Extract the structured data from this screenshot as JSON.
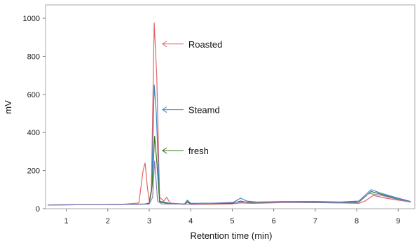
{
  "chart_data": {
    "type": "line",
    "title": "",
    "xlabel": "Retention time (min)",
    "ylabel": "mV",
    "xlim": [
      0.5,
      9.4
    ],
    "ylim": [
      0,
      1070
    ],
    "x_ticks": [
      1,
      2,
      3,
      4,
      5,
      6,
      7,
      8,
      9
    ],
    "y_ticks": [
      0,
      200,
      400,
      600,
      800,
      1000
    ],
    "grid": false,
    "legend": "none",
    "series": [
      {
        "color": "#e06666",
        "points": [
          [
            0.55,
            20
          ],
          [
            2.3,
            22
          ],
          [
            2.75,
            30
          ],
          [
            2.85,
            200
          ],
          [
            2.9,
            240
          ],
          [
            2.95,
            120
          ],
          [
            3.0,
            40
          ],
          [
            3.05,
            100
          ],
          [
            3.12,
            975
          ],
          [
            3.18,
            700
          ],
          [
            3.25,
            60
          ],
          [
            3.35,
            40
          ],
          [
            3.42,
            60
          ],
          [
            3.5,
            30
          ],
          [
            3.85,
            22
          ],
          [
            3.92,
            40
          ],
          [
            4.0,
            22
          ],
          [
            5.0,
            25
          ],
          [
            5.2,
            30
          ],
          [
            5.5,
            28
          ],
          [
            6.2,
            32
          ],
          [
            7.0,
            33
          ],
          [
            7.6,
            30
          ],
          [
            8.05,
            28
          ],
          [
            8.2,
            40
          ],
          [
            8.4,
            70
          ],
          [
            8.7,
            55
          ],
          [
            9.0,
            45
          ],
          [
            9.3,
            35
          ]
        ]
      },
      {
        "color": "#3d85c6",
        "points": [
          [
            0.55,
            20
          ],
          [
            2.3,
            22
          ],
          [
            2.9,
            25
          ],
          [
            3.0,
            30
          ],
          [
            3.06,
            100
          ],
          [
            3.12,
            650
          ],
          [
            3.17,
            500
          ],
          [
            3.25,
            40
          ],
          [
            3.5,
            28
          ],
          [
            3.85,
            25
          ],
          [
            3.92,
            45
          ],
          [
            4.0,
            28
          ],
          [
            5.0,
            30
          ],
          [
            5.2,
            55
          ],
          [
            5.35,
            40
          ],
          [
            5.6,
            35
          ],
          [
            6.2,
            38
          ],
          [
            7.0,
            38
          ],
          [
            7.6,
            35
          ],
          [
            8.05,
            40
          ],
          [
            8.35,
            100
          ],
          [
            8.6,
            80
          ],
          [
            9.0,
            55
          ],
          [
            9.3,
            38
          ]
        ]
      },
      {
        "color": "#38761d",
        "points": [
          [
            0.55,
            20
          ],
          [
            2.3,
            22
          ],
          [
            2.9,
            24
          ],
          [
            3.0,
            28
          ],
          [
            3.07,
            120
          ],
          [
            3.13,
            380
          ],
          [
            3.18,
            250
          ],
          [
            3.25,
            35
          ],
          [
            3.5,
            25
          ],
          [
            3.85,
            24
          ],
          [
            3.92,
            35
          ],
          [
            4.0,
            25
          ],
          [
            5.0,
            28
          ],
          [
            5.2,
            40
          ],
          [
            5.4,
            32
          ],
          [
            6.2,
            34
          ],
          [
            7.0,
            35
          ],
          [
            7.6,
            32
          ],
          [
            8.05,
            35
          ],
          [
            8.35,
            90
          ],
          [
            8.6,
            75
          ],
          [
            9.0,
            50
          ],
          [
            9.3,
            36
          ]
        ]
      },
      {
        "color": "#8e7cc3",
        "points": [
          [
            0.55,
            20
          ],
          [
            2.3,
            22
          ],
          [
            3.0,
            24
          ],
          [
            3.08,
            60
          ],
          [
            3.13,
            250
          ],
          [
            3.2,
            40
          ],
          [
            3.3,
            25
          ],
          [
            4.0,
            24
          ],
          [
            5.2,
            35
          ],
          [
            6.5,
            33
          ],
          [
            7.5,
            31
          ],
          [
            8.0,
            30
          ],
          [
            8.3,
            80
          ],
          [
            8.6,
            70
          ],
          [
            9.0,
            48
          ],
          [
            9.3,
            35
          ]
        ]
      }
    ],
    "annotations": [
      {
        "text": "Roasted",
        "color": "#e06666",
        "point_to": [
          3.15,
          865
        ]
      },
      {
        "text": "Steamd",
        "color": "#3d85c6",
        "point_to": [
          3.15,
          520
        ]
      },
      {
        "text": "fresh",
        "color": "#38761d",
        "point_to": [
          3.15,
          305
        ]
      }
    ]
  }
}
